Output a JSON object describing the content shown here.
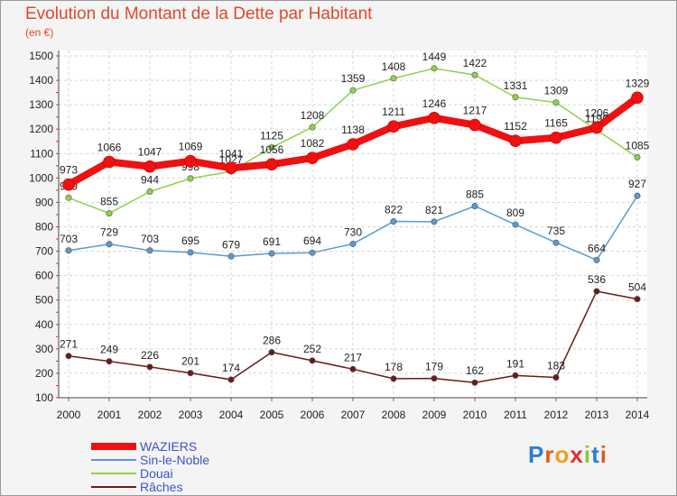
{
  "header": {
    "title": "Evolution du Montant de la Dette par Habitant",
    "subtitle": "(en €)"
  },
  "logo": {
    "text": "Proxiti"
  },
  "chart_data": {
    "type": "line",
    "title": "Evolution du Montant de la Dette par Habitant",
    "subtitle": "(en €)",
    "xlabel": "",
    "ylabel": "",
    "ylim": [
      100,
      1500
    ],
    "yticks": [
      100,
      200,
      300,
      400,
      500,
      600,
      700,
      800,
      900,
      1000,
      1100,
      1200,
      1300,
      1400,
      1500
    ],
    "grid": true,
    "legend": "bottom-left",
    "x": [
      "2000",
      "2001",
      "2002",
      "2003",
      "2004",
      "2005",
      "2006",
      "2007",
      "2008",
      "2009",
      "2010",
      "2011",
      "2012",
      "2013",
      "2014"
    ],
    "series": [
      {
        "name": "WAZIERS",
        "color": "#ee1111",
        "values": [
          973,
          1066,
          1047,
          1069,
          1041,
          1056,
          1082,
          1138,
          1211,
          1246,
          1217,
          1152,
          1165,
          1206,
          1329
        ]
      },
      {
        "name": "Sin-le-Noble",
        "color": "#5a9ad0",
        "values": [
          703,
          729,
          703,
          695,
          679,
          691,
          694,
          730,
          822,
          821,
          885,
          809,
          735,
          664,
          927
        ]
      },
      {
        "name": "Douai",
        "color": "#8ed24a",
        "values": [
          919,
          855,
          944,
          998,
          1027,
          1125,
          1208,
          1359,
          1408,
          1449,
          1422,
          1331,
          1309,
          1196,
          1085
        ]
      },
      {
        "name": "Râches",
        "color": "#6b1a1a",
        "values": [
          271,
          249,
          226,
          201,
          174,
          286,
          252,
          217,
          178,
          179,
          162,
          191,
          183,
          536,
          504
        ]
      }
    ]
  }
}
